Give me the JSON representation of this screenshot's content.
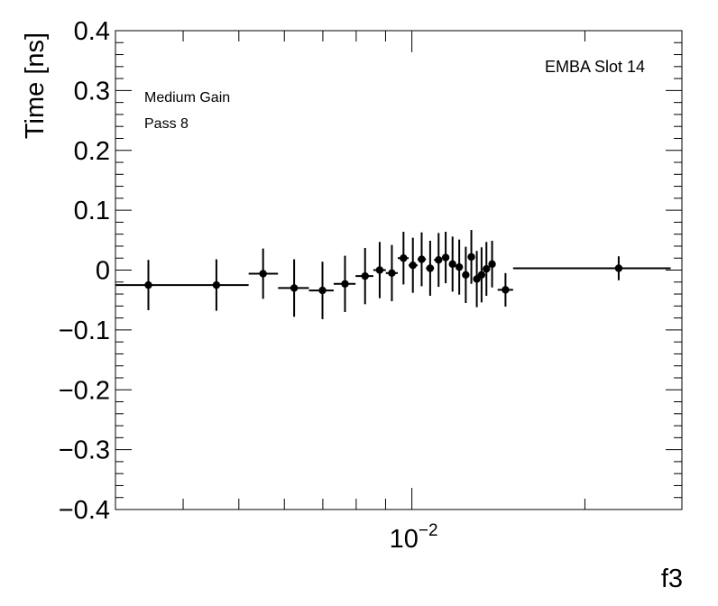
{
  "chart_data": {
    "type": "scatter",
    "title": "",
    "xlabel": "f3",
    "ylabel": "Time [ns]",
    "x_scale": "log",
    "xlim": [
      0.00305,
      0.0295
    ],
    "ylim": [
      -0.4,
      0.4
    ],
    "grid": false,
    "annotations": [
      "EMBA Slot 14",
      "Medium Gain",
      "Pass 8"
    ],
    "x_tick_labels": [
      {
        "value": 0.01,
        "base": "10",
        "exponent": "−2"
      }
    ],
    "y_tick_labels": [
      "0.4",
      "0.3",
      "0.2",
      "0.1",
      "0",
      "−0.1",
      "−0.2",
      "−0.3",
      "−0.4"
    ],
    "y_tick_values": [
      0.4,
      0.3,
      0.2,
      0.1,
      0,
      -0.1,
      -0.2,
      -0.3,
      -0.4
    ],
    "series": [
      {
        "points": [
          {
            "x": 0.00348,
            "y": -0.025,
            "xlo": 0.00305,
            "xhi": 0.004,
            "yerr": 0.042
          },
          {
            "x": 0.00457,
            "y": -0.025,
            "xlo": 0.004,
            "xhi": 0.0052,
            "yerr": 0.043
          },
          {
            "x": 0.00551,
            "y": -0.006,
            "xlo": 0.0052,
            "xhi": 0.00585,
            "yerr": 0.042
          },
          {
            "x": 0.00624,
            "y": -0.03,
            "xlo": 0.00585,
            "xhi": 0.00662,
            "yerr": 0.048
          },
          {
            "x": 0.00699,
            "y": -0.034,
            "xlo": 0.00662,
            "xhi": 0.00731,
            "yerr": 0.048
          },
          {
            "x": 0.00765,
            "y": -0.023,
            "xlo": 0.00731,
            "xhi": 0.00798,
            "yerr": 0.047
          },
          {
            "x": 0.00829,
            "y": -0.01,
            "xlo": 0.00798,
            "xhi": 0.00857,
            "yerr": 0.047
          },
          {
            "x": 0.00879,
            "y": 0.0,
            "xlo": 0.00857,
            "xhi": 0.00901,
            "yerr": 0.047
          },
          {
            "x": 0.00923,
            "y": -0.005,
            "xlo": 0.00901,
            "xhi": 0.00945,
            "yerr": 0.047
          },
          {
            "x": 0.00967,
            "y": 0.02,
            "xlo": 0.00945,
            "xhi": 0.00987,
            "yerr": 0.044
          },
          {
            "x": 0.01004,
            "y": 0.008,
            "xlo": 0.00987,
            "xhi": 0.01023,
            "yerr": 0.046
          },
          {
            "x": 0.0104,
            "y": 0.018,
            "xlo": 0.01023,
            "xhi": 0.01058,
            "yerr": 0.045
          },
          {
            "x": 0.01076,
            "y": 0.003,
            "xlo": 0.01058,
            "xhi": 0.01093,
            "yerr": 0.046
          },
          {
            "x": 0.01113,
            "y": 0.017,
            "xlo": 0.01093,
            "xhi": 0.01128,
            "yerr": 0.045
          },
          {
            "x": 0.01145,
            "y": 0.021,
            "xlo": 0.01128,
            "xhi": 0.01161,
            "yerr": 0.043
          },
          {
            "x": 0.01177,
            "y": 0.01,
            "xlo": 0.01161,
            "xhi": 0.01193,
            "yerr": 0.046
          },
          {
            "x": 0.01209,
            "y": 0.005,
            "xlo": 0.01193,
            "xhi": 0.01224,
            "yerr": 0.046
          },
          {
            "x": 0.01241,
            "y": -0.008,
            "xlo": 0.01224,
            "xhi": 0.01255,
            "yerr": 0.047
          },
          {
            "x": 0.01269,
            "y": 0.022,
            "xlo": 0.01255,
            "xhi": 0.01284,
            "yerr": 0.045
          },
          {
            "x": 0.01297,
            "y": -0.015,
            "xlo": 0.01284,
            "xhi": 0.01309,
            "yerr": 0.047
          },
          {
            "x": 0.01322,
            "y": -0.008,
            "xlo": 0.01309,
            "xhi": 0.01336,
            "yerr": 0.046
          },
          {
            "x": 0.01348,
            "y": 0.002,
            "xlo": 0.01336,
            "xhi": 0.01364,
            "yerr": 0.045
          },
          {
            "x": 0.01379,
            "y": 0.01,
            "xlo": 0.01364,
            "xhi": 0.01396,
            "yerr": 0.039
          },
          {
            "x": 0.01455,
            "y": -0.033,
            "xlo": 0.0141,
            "xhi": 0.015,
            "yerr": 0.028
          },
          {
            "x": 0.0229,
            "y": 0.003,
            "xlo": 0.015,
            "xhi": 0.0282,
            "yerr": 0.02
          }
        ]
      }
    ]
  }
}
